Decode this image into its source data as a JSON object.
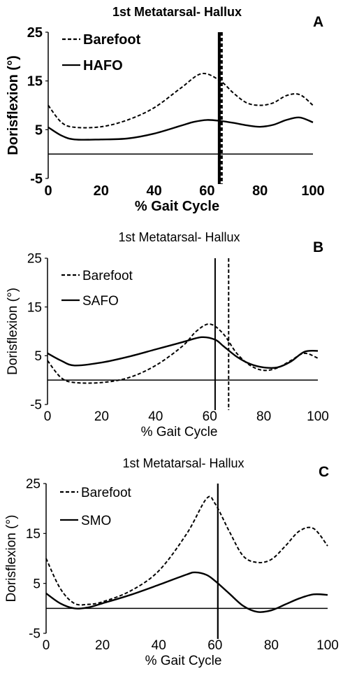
{
  "chart_data": [
    {
      "type": "line",
      "panel_label": "A",
      "title": "1st Metatarsal- Hallux",
      "xlabel": "% Gait Cycle",
      "ylabel": "Dorisflexion (°)",
      "xlim": [
        0,
        100
      ],
      "ylim": [
        -5,
        25
      ],
      "xticks": [
        "0",
        "20",
        "40",
        "60",
        "80",
        "100"
      ],
      "yticks": [
        "-5",
        "5",
        "15",
        "25"
      ],
      "grid": false,
      "legend_position": "top-left",
      "series": [
        {
          "name": "Barefoot",
          "style": "dashed",
          "x": [
            0,
            5,
            10,
            20,
            30,
            40,
            50,
            58,
            65,
            70,
            75,
            80,
            85,
            90,
            95,
            100
          ],
          "y": [
            10,
            6.5,
            5.5,
            5.6,
            7,
            9.5,
            13.5,
            16.5,
            15,
            12.5,
            10.5,
            10,
            10.5,
            12,
            12.2,
            10
          ]
        },
        {
          "name": "HAFO",
          "style": "solid",
          "x": [
            0,
            5,
            10,
            20,
            30,
            40,
            50,
            55,
            60,
            65,
            70,
            75,
            80,
            85,
            90,
            95,
            100
          ],
          "y": [
            5.5,
            3.8,
            3.0,
            3.0,
            3.2,
            4.2,
            5.8,
            6.6,
            7.0,
            6.8,
            6.4,
            5.9,
            5.6,
            6.0,
            7.0,
            7.5,
            6.5
          ]
        }
      ],
      "vertical_lines": [
        {
          "x": 65,
          "style": "solid",
          "weight": "bold"
        },
        {
          "x": 65,
          "style": "dashed",
          "weight": "bold"
        }
      ]
    },
    {
      "type": "line",
      "panel_label": "B",
      "title": "1st Metatarsal- Hallux",
      "xlabel": "% Gait Cycle",
      "ylabel": "Dorisflexion (°)",
      "xlim": [
        0,
        100
      ],
      "ylim": [
        -5,
        25
      ],
      "xticks": [
        "0",
        "20",
        "40",
        "60",
        "80",
        "100"
      ],
      "yticks": [
        "-5",
        "5",
        "15",
        "25"
      ],
      "grid": false,
      "legend_position": "top-left",
      "series": [
        {
          "name": "Barefoot",
          "style": "dashed",
          "x": [
            0,
            5,
            10,
            20,
            30,
            40,
            50,
            55,
            60,
            65,
            70,
            75,
            80,
            85,
            90,
            95,
            100
          ],
          "y": [
            4,
            0.5,
            -0.5,
            -0.5,
            0.5,
            3,
            7,
            10,
            11.5,
            9.5,
            5.5,
            3.0,
            2.0,
            2.5,
            4.0,
            5.5,
            4.5
          ]
        },
        {
          "name": "SAFO",
          "style": "solid",
          "x": [
            0,
            5,
            10,
            20,
            30,
            40,
            50,
            57,
            62,
            65,
            70,
            75,
            80,
            85,
            90,
            95,
            100
          ],
          "y": [
            5.5,
            4,
            3.0,
            3.6,
            4.8,
            6.3,
            7.8,
            8.8,
            8.3,
            7.0,
            4.8,
            3.3,
            2.6,
            2.6,
            3.8,
            5.8,
            6.0
          ]
        }
      ],
      "vertical_lines": [
        {
          "x": 62,
          "style": "solid",
          "weight": "normal"
        },
        {
          "x": 67,
          "style": "dashed",
          "weight": "normal"
        }
      ]
    },
    {
      "type": "line",
      "panel_label": "C",
      "title": "1st Metatarsal- Hallux",
      "xlabel": "% Gait Cycle",
      "ylabel": "Dorisflexion (°)",
      "xlim": [
        0,
        100
      ],
      "ylim": [
        -5,
        25
      ],
      "xticks": [
        "0",
        "20",
        "40",
        "60",
        "80",
        "100"
      ],
      "yticks": [
        "-5",
        "5",
        "15",
        "25"
      ],
      "grid": false,
      "legend_position": "top-left",
      "series": [
        {
          "name": "Barefoot",
          "style": "dashed",
          "x": [
            0,
            5,
            10,
            15,
            20,
            30,
            40,
            50,
            57,
            60,
            65,
            70,
            75,
            80,
            85,
            90,
            95,
            100
          ],
          "y": [
            10,
            4,
            1,
            0.8,
            1.3,
            3.5,
            7.5,
            15,
            22,
            21,
            15.5,
            10.5,
            9.2,
            9.8,
            12.5,
            15.5,
            16,
            12.5
          ]
        },
        {
          "name": "SMO",
          "style": "solid",
          "x": [
            0,
            5,
            10,
            15,
            20,
            30,
            40,
            50,
            53,
            57,
            60,
            65,
            70,
            75,
            80,
            85,
            90,
            95,
            100
          ],
          "y": [
            3,
            1,
            0,
            0.2,
            1,
            2.7,
            4.7,
            6.8,
            7.2,
            6.7,
            5.5,
            3,
            0.5,
            -0.7,
            -0.4,
            0.8,
            2.0,
            2.8,
            2.7
          ]
        }
      ],
      "vertical_lines": [
        {
          "x": 61,
          "style": "solid",
          "weight": "normal"
        }
      ]
    }
  ]
}
